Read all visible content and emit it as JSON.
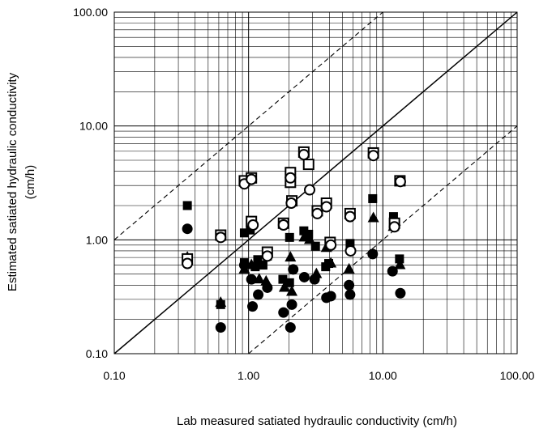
{
  "chart_data": {
    "type": "scatter",
    "title": "",
    "xlabel": "Lab measured satiated hydraulic conductivity (cm/h)",
    "ylabel_line1": "Estimated satiated hydraulic conductivity",
    "ylabel_line2": "(cm/h)",
    "x_scale": "log",
    "y_scale": "log",
    "xlim": [
      0.1,
      100
    ],
    "ylim": [
      0.1,
      100
    ],
    "x_ticks": [
      "0.10",
      "1.00",
      "10.00",
      "100.00"
    ],
    "y_ticks": [
      "0.10",
      "1.00",
      "10.00",
      "100.00"
    ],
    "grid": "log-major-and-minor",
    "legend": "none",
    "reference_lines": [
      {
        "style": "solid",
        "relation": "y = x"
      },
      {
        "style": "dashed",
        "relation": "y = 10x"
      },
      {
        "style": "dashed",
        "relation": "y = 0.1x"
      }
    ],
    "series": [
      {
        "marker": "filled-square",
        "points": [
          [
            0.35,
            2.0
          ],
          [
            0.35,
            0.68
          ],
          [
            0.62,
            0.27
          ],
          [
            0.93,
            1.15
          ],
          [
            0.93,
            0.63
          ],
          [
            1.03,
            1.22
          ],
          [
            1.12,
            0.58
          ],
          [
            1.17,
            0.67
          ],
          [
            1.28,
            0.6
          ],
          [
            1.38,
            0.72
          ],
          [
            1.8,
            0.45
          ],
          [
            2.02,
            1.05
          ],
          [
            2.02,
            0.42
          ],
          [
            2.58,
            1.2
          ],
          [
            2.8,
            1.12
          ],
          [
            3.15,
            0.88
          ],
          [
            3.75,
            0.58
          ],
          [
            3.95,
            0.62
          ],
          [
            4.05,
            0.9
          ],
          [
            5.7,
            0.93
          ],
          [
            8.4,
            2.3
          ],
          [
            12,
            1.6
          ],
          [
            13.3,
            0.68
          ]
        ]
      },
      {
        "marker": "filled-triangle",
        "points": [
          [
            0.35,
            0.7
          ],
          [
            0.62,
            0.28
          ],
          [
            0.93,
            0.55
          ],
          [
            1.05,
            0.6
          ],
          [
            1.2,
            0.45
          ],
          [
            1.35,
            0.43
          ],
          [
            1.85,
            0.38
          ],
          [
            2.05,
            0.7
          ],
          [
            2.1,
            0.35
          ],
          [
            2.6,
            1.05
          ],
          [
            2.85,
            1.0
          ],
          [
            3.2,
            0.5
          ],
          [
            3.8,
            0.85
          ],
          [
            4.1,
            0.62
          ],
          [
            5.6,
            0.55
          ],
          [
            8.5,
            1.55
          ],
          [
            12,
            1.3
          ],
          [
            13.4,
            0.6
          ]
        ]
      },
      {
        "marker": "filled-circle",
        "points": [
          [
            0.35,
            1.25
          ],
          [
            0.62,
            0.17
          ],
          [
            0.93,
            0.6
          ],
          [
            1.05,
            0.45
          ],
          [
            1.07,
            0.26
          ],
          [
            1.18,
            0.33
          ],
          [
            1.38,
            0.38
          ],
          [
            1.82,
            0.23
          ],
          [
            2.05,
            0.17
          ],
          [
            2.1,
            0.27
          ],
          [
            2.15,
            0.55
          ],
          [
            2.6,
            0.47
          ],
          [
            3.1,
            0.45
          ],
          [
            3.8,
            0.31
          ],
          [
            4.1,
            0.32
          ],
          [
            5.6,
            0.4
          ],
          [
            5.7,
            0.33
          ],
          [
            8.4,
            0.75
          ],
          [
            11.8,
            0.53
          ],
          [
            13.5,
            0.34
          ]
        ]
      },
      {
        "marker": "open-square",
        "points": [
          [
            0.35,
            0.68
          ],
          [
            0.62,
            1.1
          ],
          [
            0.93,
            3.3
          ],
          [
            1.05,
            3.5
          ],
          [
            1.05,
            1.45
          ],
          [
            1.38,
            0.78
          ],
          [
            1.82,
            1.4
          ],
          [
            2.05,
            3.9
          ],
          [
            2.05,
            3.2
          ],
          [
            2.1,
            2.2
          ],
          [
            2.58,
            5.9
          ],
          [
            2.8,
            4.6
          ],
          [
            3.25,
            1.8
          ],
          [
            3.8,
            2.1
          ],
          [
            4.05,
            0.95
          ],
          [
            5.7,
            1.7
          ],
          [
            8.5,
            5.8
          ],
          [
            12.2,
            1.4
          ],
          [
            13.4,
            3.3
          ]
        ]
      },
      {
        "marker": "open-circle",
        "points": [
          [
            0.35,
            0.62
          ],
          [
            0.62,
            1.05
          ],
          [
            0.93,
            3.1
          ],
          [
            1.05,
            3.4
          ],
          [
            1.08,
            1.35
          ],
          [
            1.38,
            0.72
          ],
          [
            1.82,
            1.35
          ],
          [
            2.05,
            3.5
          ],
          [
            2.08,
            2.1
          ],
          [
            2.58,
            5.6
          ],
          [
            2.85,
            2.75
          ],
          [
            3.25,
            1.7
          ],
          [
            3.8,
            1.95
          ],
          [
            4.1,
            0.9
          ],
          [
            5.7,
            1.6
          ],
          [
            5.75,
            0.8
          ],
          [
            8.5,
            5.5
          ],
          [
            12.2,
            1.3
          ],
          [
            13.5,
            3.25
          ]
        ]
      }
    ]
  }
}
